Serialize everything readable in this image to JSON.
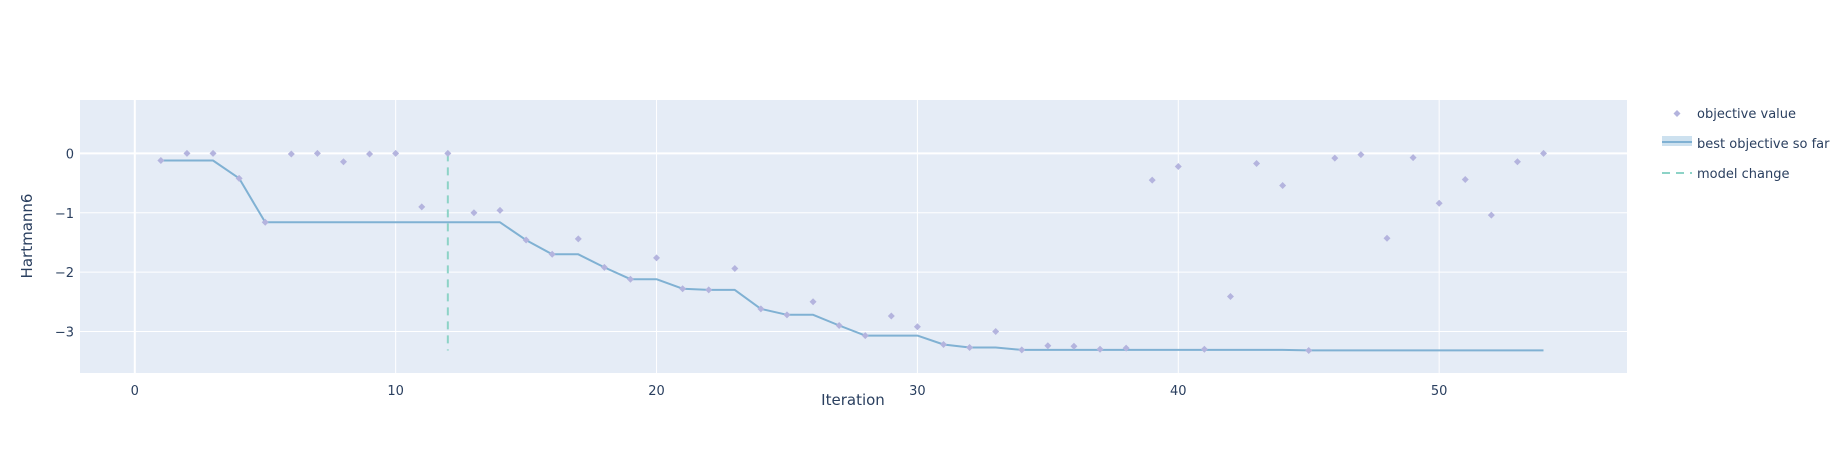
{
  "chart_data": {
    "type": "scatter",
    "xlabel": "Iteration",
    "ylabel": "Hartmann6",
    "xlim": [
      -2.1,
      57.2
    ],
    "ylim": [
      -3.7,
      0.9
    ],
    "x_ticks": [
      0,
      10,
      20,
      30,
      40,
      50
    ],
    "y_ticks": [
      0,
      -1,
      -2,
      -3
    ],
    "y_tick_labels": [
      "0",
      "−1",
      "−2",
      "−3"
    ],
    "grid": true,
    "legend_position": "right",
    "colors": {
      "plot_background": "#e5ecf6",
      "grid": "#ffffff",
      "objective_value": "#b4b4de",
      "best_objective": "#80b1d3",
      "best_objective_band": "#cde1ef",
      "model_change": "#8dd3c7",
      "text": "#2a3f5f"
    },
    "series": [
      {
        "name": "objective value",
        "mode": "markers",
        "x": [
          1,
          2,
          3,
          4,
          5,
          6,
          7,
          8,
          9,
          10,
          11,
          12,
          13,
          14,
          15,
          16,
          17,
          18,
          19,
          20,
          21,
          22,
          23,
          24,
          25,
          26,
          27,
          28,
          29,
          30,
          31,
          32,
          33,
          34,
          35,
          36,
          37,
          38,
          39,
          40,
          41,
          42,
          43,
          44,
          45,
          46,
          47,
          48,
          49,
          50,
          51,
          52,
          53,
          54
        ],
        "y": [
          -0.12,
          0.0,
          0.0,
          -0.42,
          -1.16,
          -0.01,
          0.0,
          -0.14,
          -0.01,
          0.0,
          -0.9,
          0.0,
          -1.0,
          -0.96,
          -1.46,
          -1.7,
          -1.44,
          -1.92,
          -2.12,
          -1.76,
          -2.28,
          -2.3,
          -1.94,
          -2.62,
          -2.72,
          -2.5,
          -2.9,
          -3.07,
          -2.74,
          -2.92,
          -3.22,
          -3.27,
          -3.0,
          -3.31,
          -3.24,
          -3.25,
          -3.3,
          -3.28,
          -0.45,
          -0.22,
          -3.3,
          -2.41,
          -0.17,
          -0.54,
          -3.32,
          -0.08,
          -0.02,
          -1.43,
          -0.07,
          -0.84,
          -0.44,
          -1.04,
          -0.14,
          0.0
        ]
      },
      {
        "name": "best objective so far",
        "mode": "lines",
        "x": [
          1,
          2,
          3,
          4,
          5,
          6,
          7,
          8,
          9,
          10,
          11,
          12,
          13,
          14,
          15,
          16,
          17,
          18,
          19,
          20,
          21,
          22,
          23,
          24,
          25,
          26,
          27,
          28,
          29,
          30,
          31,
          32,
          33,
          34,
          35,
          36,
          37,
          38,
          39,
          40,
          41,
          42,
          43,
          44,
          45,
          46,
          47,
          48,
          49,
          50,
          51,
          52,
          53,
          54
        ],
        "y": [
          -0.12,
          -0.12,
          -0.12,
          -0.42,
          -1.16,
          -1.16,
          -1.16,
          -1.16,
          -1.16,
          -1.16,
          -1.16,
          -1.16,
          -1.16,
          -1.16,
          -1.46,
          -1.7,
          -1.7,
          -1.92,
          -2.12,
          -2.12,
          -2.28,
          -2.3,
          -2.3,
          -2.62,
          -2.72,
          -2.72,
          -2.9,
          -3.07,
          -3.07,
          -3.07,
          -3.22,
          -3.27,
          -3.27,
          -3.31,
          -3.31,
          -3.31,
          -3.31,
          -3.31,
          -3.31,
          -3.31,
          -3.31,
          -3.31,
          -3.31,
          -3.31,
          -3.32,
          -3.32,
          -3.32,
          -3.32,
          -3.32,
          -3.32,
          -3.32,
          -3.32,
          -3.32,
          -3.32
        ]
      },
      {
        "name": "model change",
        "mode": "lines",
        "dash": "dash",
        "x": [
          12,
          12
        ],
        "y": [
          0.0,
          -3.32
        ]
      }
    ]
  }
}
